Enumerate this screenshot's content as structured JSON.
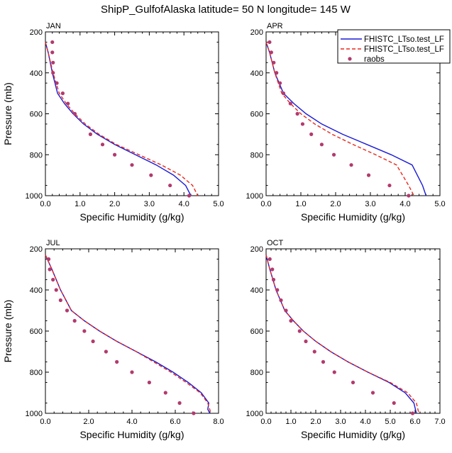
{
  "title": "ShipP_GulfofAlaska  latitude= 50 N longitude= 145 W",
  "legend": {
    "position": "top-right",
    "entries": [
      {
        "label": "FHISTC_LTso.test_LF",
        "style": "solid",
        "color": "#1a1ad6"
      },
      {
        "label": "FHISTC_LTso.test_LF",
        "style": "dashed",
        "color": "#e8281e"
      },
      {
        "label": "raobs",
        "style": "marker",
        "color": "#b23a6e"
      }
    ]
  },
  "chart_data": [
    {
      "type": "line",
      "panel": "JAN",
      "xlabel": "Specific Humidity (g/kg)",
      "ylabel": "Pressure (mb)",
      "xlim": [
        0,
        5
      ],
      "ylim": [
        1000,
        200
      ],
      "xticks": [
        "0.0",
        "1.0",
        "2.0",
        "3.0",
        "4.0",
        "5.0"
      ],
      "yticks": [
        "200",
        "400",
        "600",
        "800",
        "1000"
      ],
      "series": [
        {
          "name": "FHISTC_LTso.test_LF",
          "style": "solid",
          "x": [
            0.0,
            0.08,
            0.2,
            0.35,
            0.55,
            0.8,
            1.1,
            1.5,
            2.0,
            2.6,
            3.2,
            3.7,
            4.05,
            4.2
          ],
          "y": [
            250,
            300,
            400,
            500,
            550,
            600,
            650,
            700,
            750,
            800,
            850,
            900,
            950,
            1000
          ]
        },
        {
          "name": "FHISTC_LTso.test_LF",
          "style": "dashed",
          "x": [
            0.0,
            0.08,
            0.22,
            0.4,
            0.6,
            0.85,
            1.15,
            1.55,
            2.05,
            2.7,
            3.35,
            3.9,
            4.25,
            4.4
          ],
          "y": [
            250,
            300,
            400,
            500,
            550,
            600,
            650,
            700,
            750,
            800,
            850,
            900,
            950,
            1000
          ]
        },
        {
          "name": "raobs",
          "style": "marker",
          "x": [
            0.2,
            0.2,
            0.22,
            0.22,
            0.33,
            0.5,
            0.65,
            0.85,
            1.3,
            1.65,
            2.0,
            2.5,
            3.05,
            3.6,
            4.15
          ],
          "y": [
            250,
            300,
            350,
            400,
            450,
            500,
            550,
            600,
            700,
            750,
            800,
            850,
            900,
            950,
            1000
          ]
        }
      ]
    },
    {
      "type": "line",
      "panel": "APR",
      "xlabel": "Specific Humidity (g/kg)",
      "ylabel": "",
      "xlim": [
        0,
        5
      ],
      "ylim": [
        1000,
        200
      ],
      "xticks": [
        "0.0",
        "1.0",
        "2.0",
        "3.0",
        "4.0",
        "5.0"
      ],
      "yticks": [
        "200",
        "400",
        "600",
        "800",
        "1000"
      ],
      "series": [
        {
          "name": "FHISTC_LTso.test_LF",
          "style": "solid",
          "x": [
            0.0,
            0.1,
            0.25,
            0.5,
            0.8,
            1.15,
            1.6,
            2.2,
            2.9,
            3.6,
            4.2,
            4.5,
            4.6
          ],
          "y": [
            250,
            300,
            400,
            500,
            550,
            600,
            650,
            700,
            750,
            800,
            850,
            950,
            1000
          ]
        },
        {
          "name": "FHISTC_LTso.test_LF",
          "style": "dashed",
          "x": [
            0.0,
            0.1,
            0.25,
            0.45,
            0.7,
            1.0,
            1.4,
            1.9,
            2.5,
            3.15,
            3.75,
            4.1,
            4.25
          ],
          "y": [
            250,
            300,
            400,
            500,
            550,
            600,
            650,
            700,
            750,
            800,
            850,
            950,
            1000
          ]
        },
        {
          "name": "raobs",
          "style": "marker",
          "x": [
            0.1,
            0.15,
            0.22,
            0.3,
            0.4,
            0.5,
            0.7,
            0.9,
            1.05,
            1.3,
            1.6,
            1.95,
            2.45,
            2.95,
            3.55,
            4.1
          ],
          "y": [
            250,
            300,
            350,
            400,
            450,
            500,
            550,
            600,
            650,
            700,
            750,
            800,
            850,
            900,
            950,
            1000
          ]
        }
      ]
    },
    {
      "type": "line",
      "panel": "JUL",
      "xlabel": "Specific Humidity (g/kg)",
      "ylabel": "Pressure (mb)",
      "xlim": [
        0,
        8
      ],
      "ylim": [
        1000,
        200
      ],
      "xticks": [
        "0.0",
        "2.0",
        "4.0",
        "6.0",
        "8.0"
      ],
      "yticks": [
        "200",
        "400",
        "600",
        "800",
        "1000"
      ],
      "series": [
        {
          "name": "FHISTC_LTso.test_LF",
          "style": "solid",
          "x": [
            0.0,
            0.3,
            0.7,
            1.2,
            1.8,
            2.5,
            3.3,
            4.2,
            5.1,
            5.9,
            6.6,
            7.2,
            7.55,
            7.5,
            7.6
          ],
          "y": [
            230,
            300,
            400,
            500,
            550,
            600,
            650,
            700,
            750,
            800,
            850,
            900,
            950,
            980,
            1000
          ]
        },
        {
          "name": "FHISTC_LTso.test_LF",
          "style": "dashed",
          "x": [
            0.0,
            0.3,
            0.7,
            1.2,
            1.8,
            2.5,
            3.3,
            4.2,
            5.0,
            5.8,
            6.5,
            7.15,
            7.5,
            7.65
          ],
          "y": [
            230,
            300,
            400,
            500,
            550,
            600,
            650,
            700,
            750,
            800,
            850,
            900,
            950,
            1000
          ]
        },
        {
          "name": "raobs",
          "style": "marker",
          "x": [
            0.15,
            0.2,
            0.35,
            0.5,
            0.7,
            1.0,
            1.35,
            1.8,
            2.2,
            2.8,
            3.3,
            4.0,
            4.8,
            5.55,
            6.2,
            6.85
          ],
          "y": [
            250,
            300,
            350,
            400,
            450,
            500,
            550,
            600,
            650,
            700,
            750,
            800,
            850,
            900,
            950,
            1000
          ]
        }
      ]
    },
    {
      "type": "line",
      "panel": "OCT",
      "xlabel": "Specific Humidity (g/kg)",
      "ylabel": "",
      "xlim": [
        0,
        7
      ],
      "ylim": [
        1000,
        200
      ],
      "xticks": [
        "0.0",
        "1.0",
        "2.0",
        "3.0",
        "4.0",
        "5.0",
        "6.0",
        "7.0"
      ],
      "yticks": [
        "200",
        "400",
        "600",
        "800",
        "1000"
      ],
      "series": [
        {
          "name": "FHISTC_LTso.test_LF",
          "style": "solid",
          "x": [
            0.0,
            0.15,
            0.4,
            0.75,
            1.1,
            1.5,
            2.0,
            2.6,
            3.3,
            4.1,
            4.95,
            5.6,
            5.95,
            6.05
          ],
          "y": [
            230,
            300,
            400,
            500,
            550,
            600,
            650,
            700,
            750,
            800,
            850,
            900,
            950,
            1000
          ]
        },
        {
          "name": "FHISTC_LTso.test_LF",
          "style": "dashed",
          "x": [
            0.0,
            0.15,
            0.4,
            0.75,
            1.1,
            1.5,
            2.0,
            2.6,
            3.3,
            4.1,
            5.0,
            5.7,
            6.05,
            6.15
          ],
          "y": [
            230,
            300,
            400,
            500,
            550,
            600,
            650,
            700,
            750,
            800,
            850,
            900,
            950,
            1000
          ]
        },
        {
          "name": "raobs",
          "style": "marker",
          "x": [
            0.15,
            0.25,
            0.3,
            0.45,
            0.6,
            0.8,
            1.0,
            1.35,
            1.6,
            1.95,
            2.3,
            2.75,
            3.5,
            4.3,
            5.15,
            5.9
          ],
          "y": [
            250,
            300,
            350,
            400,
            450,
            500,
            550,
            600,
            650,
            700,
            750,
            800,
            850,
            900,
            950,
            1000
          ]
        }
      ]
    }
  ]
}
